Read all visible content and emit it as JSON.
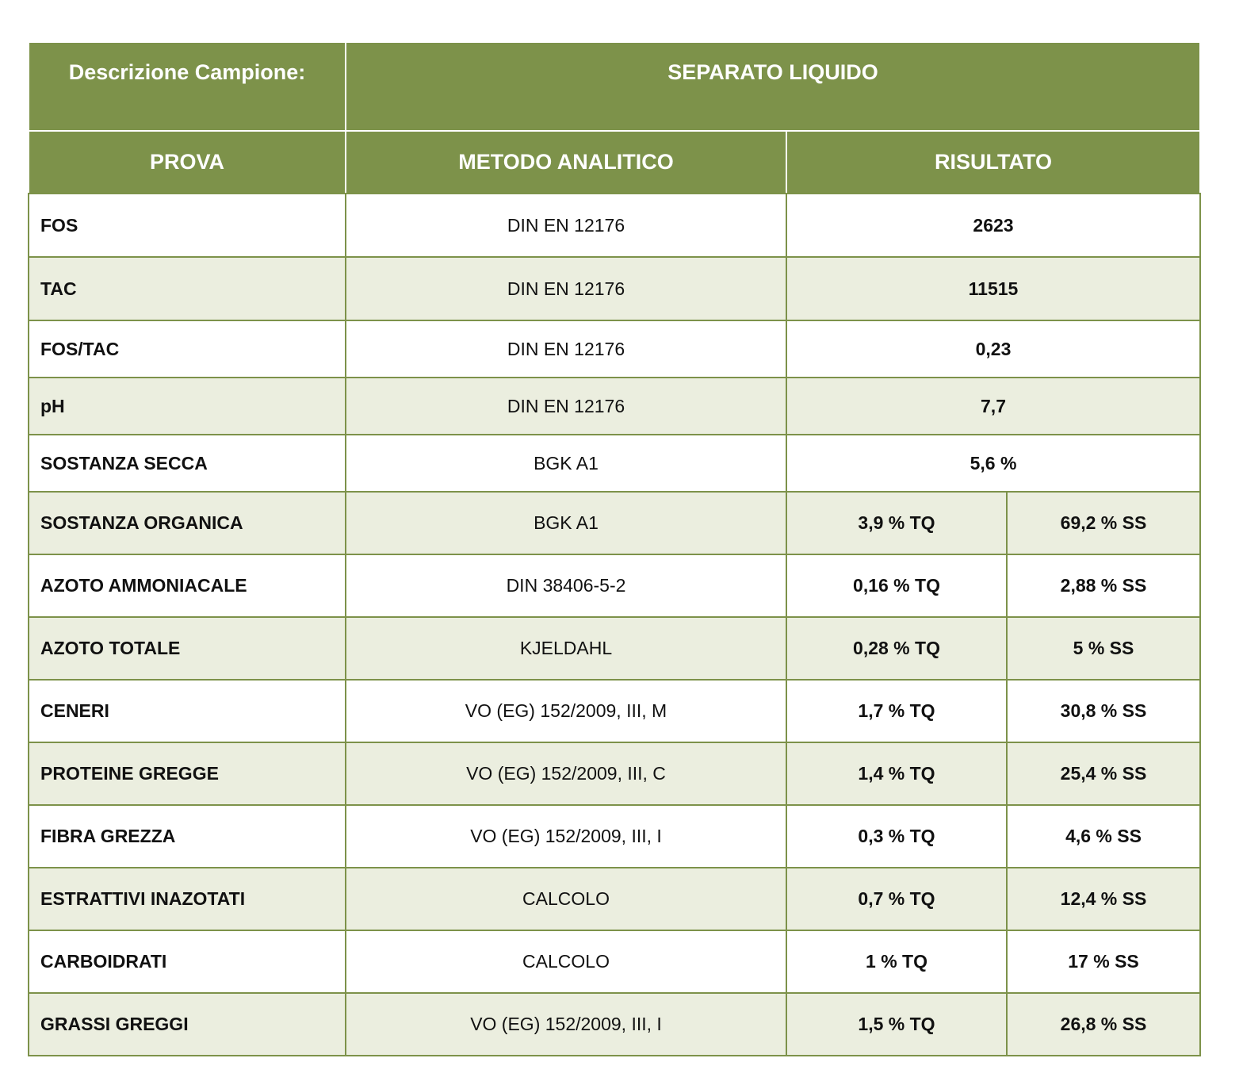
{
  "header": {
    "sample_label": "Descrizione Campione:",
    "sample_value": "SEPARATO LIQUIDO",
    "col_prova": "PROVA",
    "col_metodo": "METODO ANALITICO",
    "col_risultato": "RISULTATO"
  },
  "colors": {
    "header_green": "#7d924a",
    "row_alt": "#ebeedf",
    "border": "#7d924a"
  },
  "rows": [
    {
      "prova": "FOS",
      "metodo": "DIN EN 12176",
      "r1": "2623"
    },
    {
      "prova": "TAC",
      "metodo": "DIN EN 12176",
      "r1": "11515"
    },
    {
      "prova": "FOS/TAC",
      "metodo": "DIN EN 12176",
      "r1": "0,23"
    },
    {
      "prova": "pH",
      "metodo": "DIN EN 12176",
      "r1": "7,7"
    },
    {
      "prova": "SOSTANZA SECCA",
      "metodo": "BGK A1",
      "r1": "5,6 %"
    },
    {
      "prova": "SOSTANZA ORGANICA",
      "metodo": "BGK A1",
      "r1": "3,9 % TQ",
      "r2": "69,2 % SS"
    },
    {
      "prova": "AZOTO AMMONIACALE",
      "metodo": "DIN 38406-5-2",
      "r1": "0,16 % TQ",
      "r2": "2,88 % SS"
    },
    {
      "prova": "AZOTO TOTALE",
      "metodo": "KJELDAHL",
      "r1": "0,28 % TQ",
      "r2": "5 % SS"
    },
    {
      "prova": "CENERI",
      "metodo": "VO (EG) 152/2009, III, M",
      "r1": "1,7 % TQ",
      "r2": "30,8 % SS"
    },
    {
      "prova": "PROTEINE GREGGE",
      "metodo": "VO (EG) 152/2009, III, C",
      "r1": "1,4 % TQ",
      "r2": "25,4 % SS"
    },
    {
      "prova": "FIBRA GREZZA",
      "metodo": "VO (EG) 152/2009, III, I",
      "r1": "0,3 % TQ",
      "r2": "4,6 % SS"
    },
    {
      "prova": "ESTRATTIVI INAZOTATI",
      "metodo": "CALCOLO",
      "r1": "0,7 % TQ",
      "r2": "12,4 % SS"
    },
    {
      "prova": "CARBOIDRATI",
      "metodo": "CALCOLO",
      "r1": "1 % TQ",
      "r2": "17 % SS"
    },
    {
      "prova": "GRASSI GREGGI",
      "metodo": "VO (EG) 152/2009, III, I",
      "r1": "1,5 % TQ",
      "r2": "26,8 % SS"
    }
  ]
}
